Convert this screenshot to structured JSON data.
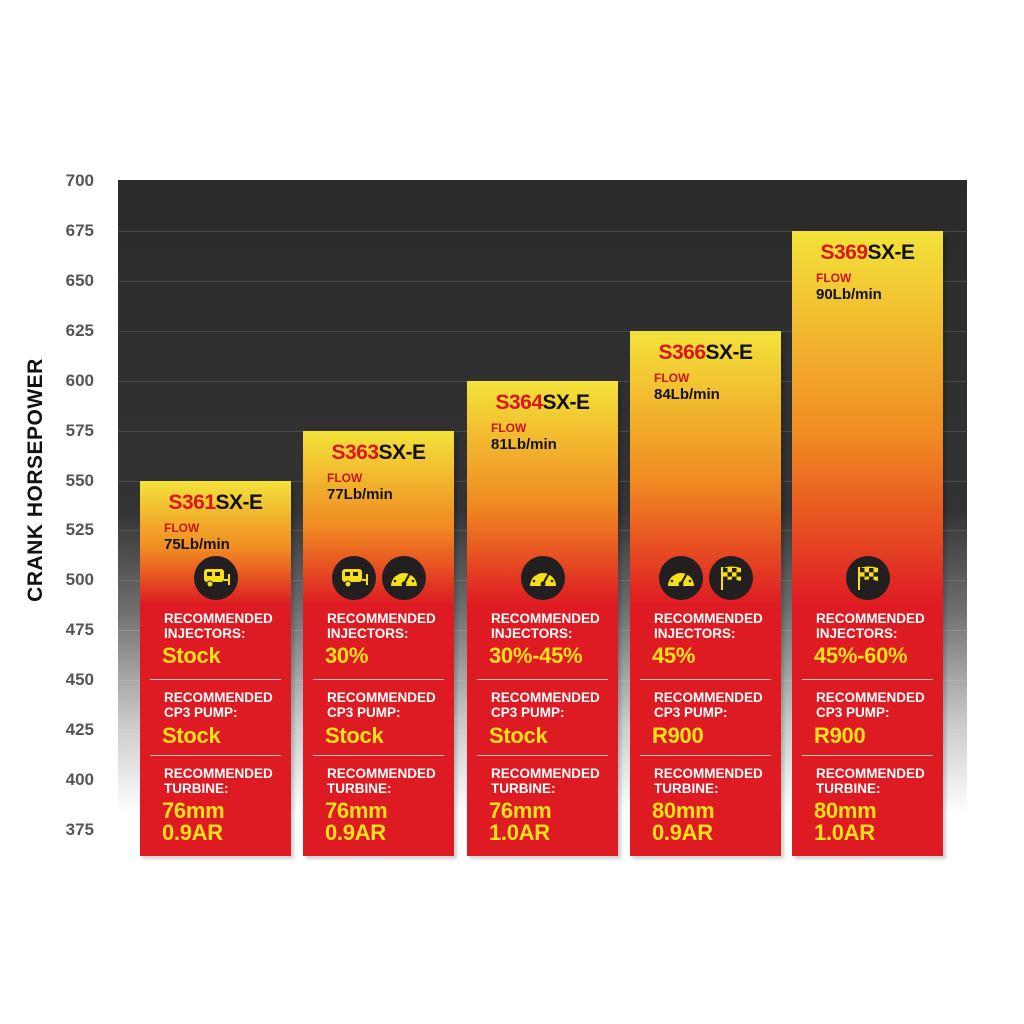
{
  "chart_data": {
    "type": "bar",
    "ylabel": "CRANK HORSEPOWER",
    "ylim": [
      362,
      700
    ],
    "yticks": [
      700,
      675,
      650,
      625,
      600,
      575,
      550,
      525,
      500,
      475,
      450,
      425,
      400,
      375
    ],
    "grid": true,
    "categories": [
      "S361SX-E",
      "S363SX-E",
      "S364SX-E",
      "S366SX-E",
      "S369SX-E"
    ],
    "values": [
      550,
      575,
      600,
      625,
      675
    ],
    "bars": [
      {
        "model_prefix": "S361",
        "model_suffix": "SX-E",
        "flow_label": "FLOW",
        "flow": "75Lb/min",
        "icons": [
          "trailer-icon"
        ],
        "injectors_label_1": "RECOMMENDED",
        "injectors_label_2": "INJECTORS:",
        "injectors": "Stock",
        "pump_label_1": "RECOMMENDED",
        "pump_label_2": "CP3 PUMP:",
        "pump": "Stock",
        "turbine_label_1": "RECOMMENDED",
        "turbine_label_2": "TURBINE:",
        "turbine_size": "76mm",
        "turbine_ar": "0.9AR"
      },
      {
        "model_prefix": "S363",
        "model_suffix": "SX-E",
        "flow_label": "FLOW",
        "flow": "77Lb/min",
        "icons": [
          "trailer-icon",
          "gauge-icon"
        ],
        "injectors_label_1": "RECOMMENDED",
        "injectors_label_2": "INJECTORS:",
        "injectors": "30%",
        "pump_label_1": "RECOMMENDED",
        "pump_label_2": "CP3 PUMP:",
        "pump": "Stock",
        "turbine_label_1": "RECOMMENDED",
        "turbine_label_2": "TURBINE:",
        "turbine_size": "76mm",
        "turbine_ar": "0.9AR"
      },
      {
        "model_prefix": "S364",
        "model_suffix": "SX-E",
        "flow_label": "FLOW",
        "flow": "81Lb/min",
        "icons": [
          "gauge-icon"
        ],
        "injectors_label_1": "RECOMMENDED",
        "injectors_label_2": "INJECTORS:",
        "injectors": "30%-45%",
        "pump_label_1": "RECOMMENDED",
        "pump_label_2": "CP3 PUMP:",
        "pump": "Stock",
        "turbine_label_1": "RECOMMENDED",
        "turbine_label_2": "TURBINE:",
        "turbine_size": "76mm",
        "turbine_ar": "1.0AR"
      },
      {
        "model_prefix": "S366",
        "model_suffix": "SX-E",
        "flow_label": "FLOW",
        "flow": "84Lb/min",
        "icons": [
          "gauge-icon",
          "checkered-flag-icon"
        ],
        "injectors_label_1": "RECOMMENDED",
        "injectors_label_2": "INJECTORS:",
        "injectors": "45%",
        "pump_label_1": "RECOMMENDED",
        "pump_label_2": "CP3 PUMP:",
        "pump": "R900",
        "turbine_label_1": "RECOMMENDED",
        "turbine_label_2": "TURBINE:",
        "turbine_size": "80mm",
        "turbine_ar": "0.9AR"
      },
      {
        "model_prefix": "S369",
        "model_suffix": "SX-E",
        "flow_label": "FLOW",
        "flow": "90Lb/min",
        "icons": [
          "checkered-flag-icon"
        ],
        "injectors_label_1": "RECOMMENDED",
        "injectors_label_2": "INJECTORS:",
        "injectors": "45%-60%",
        "pump_label_1": "RECOMMENDED",
        "pump_label_2": "CP3 PUMP:",
        "pump": "R900",
        "turbine_label_1": "RECOMMENDED",
        "turbine_label_2": "TURBINE:",
        "turbine_size": "80mm",
        "turbine_ar": "1.0AR"
      }
    ]
  },
  "colors": {
    "bar_yellow": "#f3e33a",
    "bar_orange": "#f08a22",
    "bar_red": "#de1b23",
    "model_prefix": "#d9171e",
    "value_text": "#f7e01a",
    "icon_bg": "#231f20"
  }
}
